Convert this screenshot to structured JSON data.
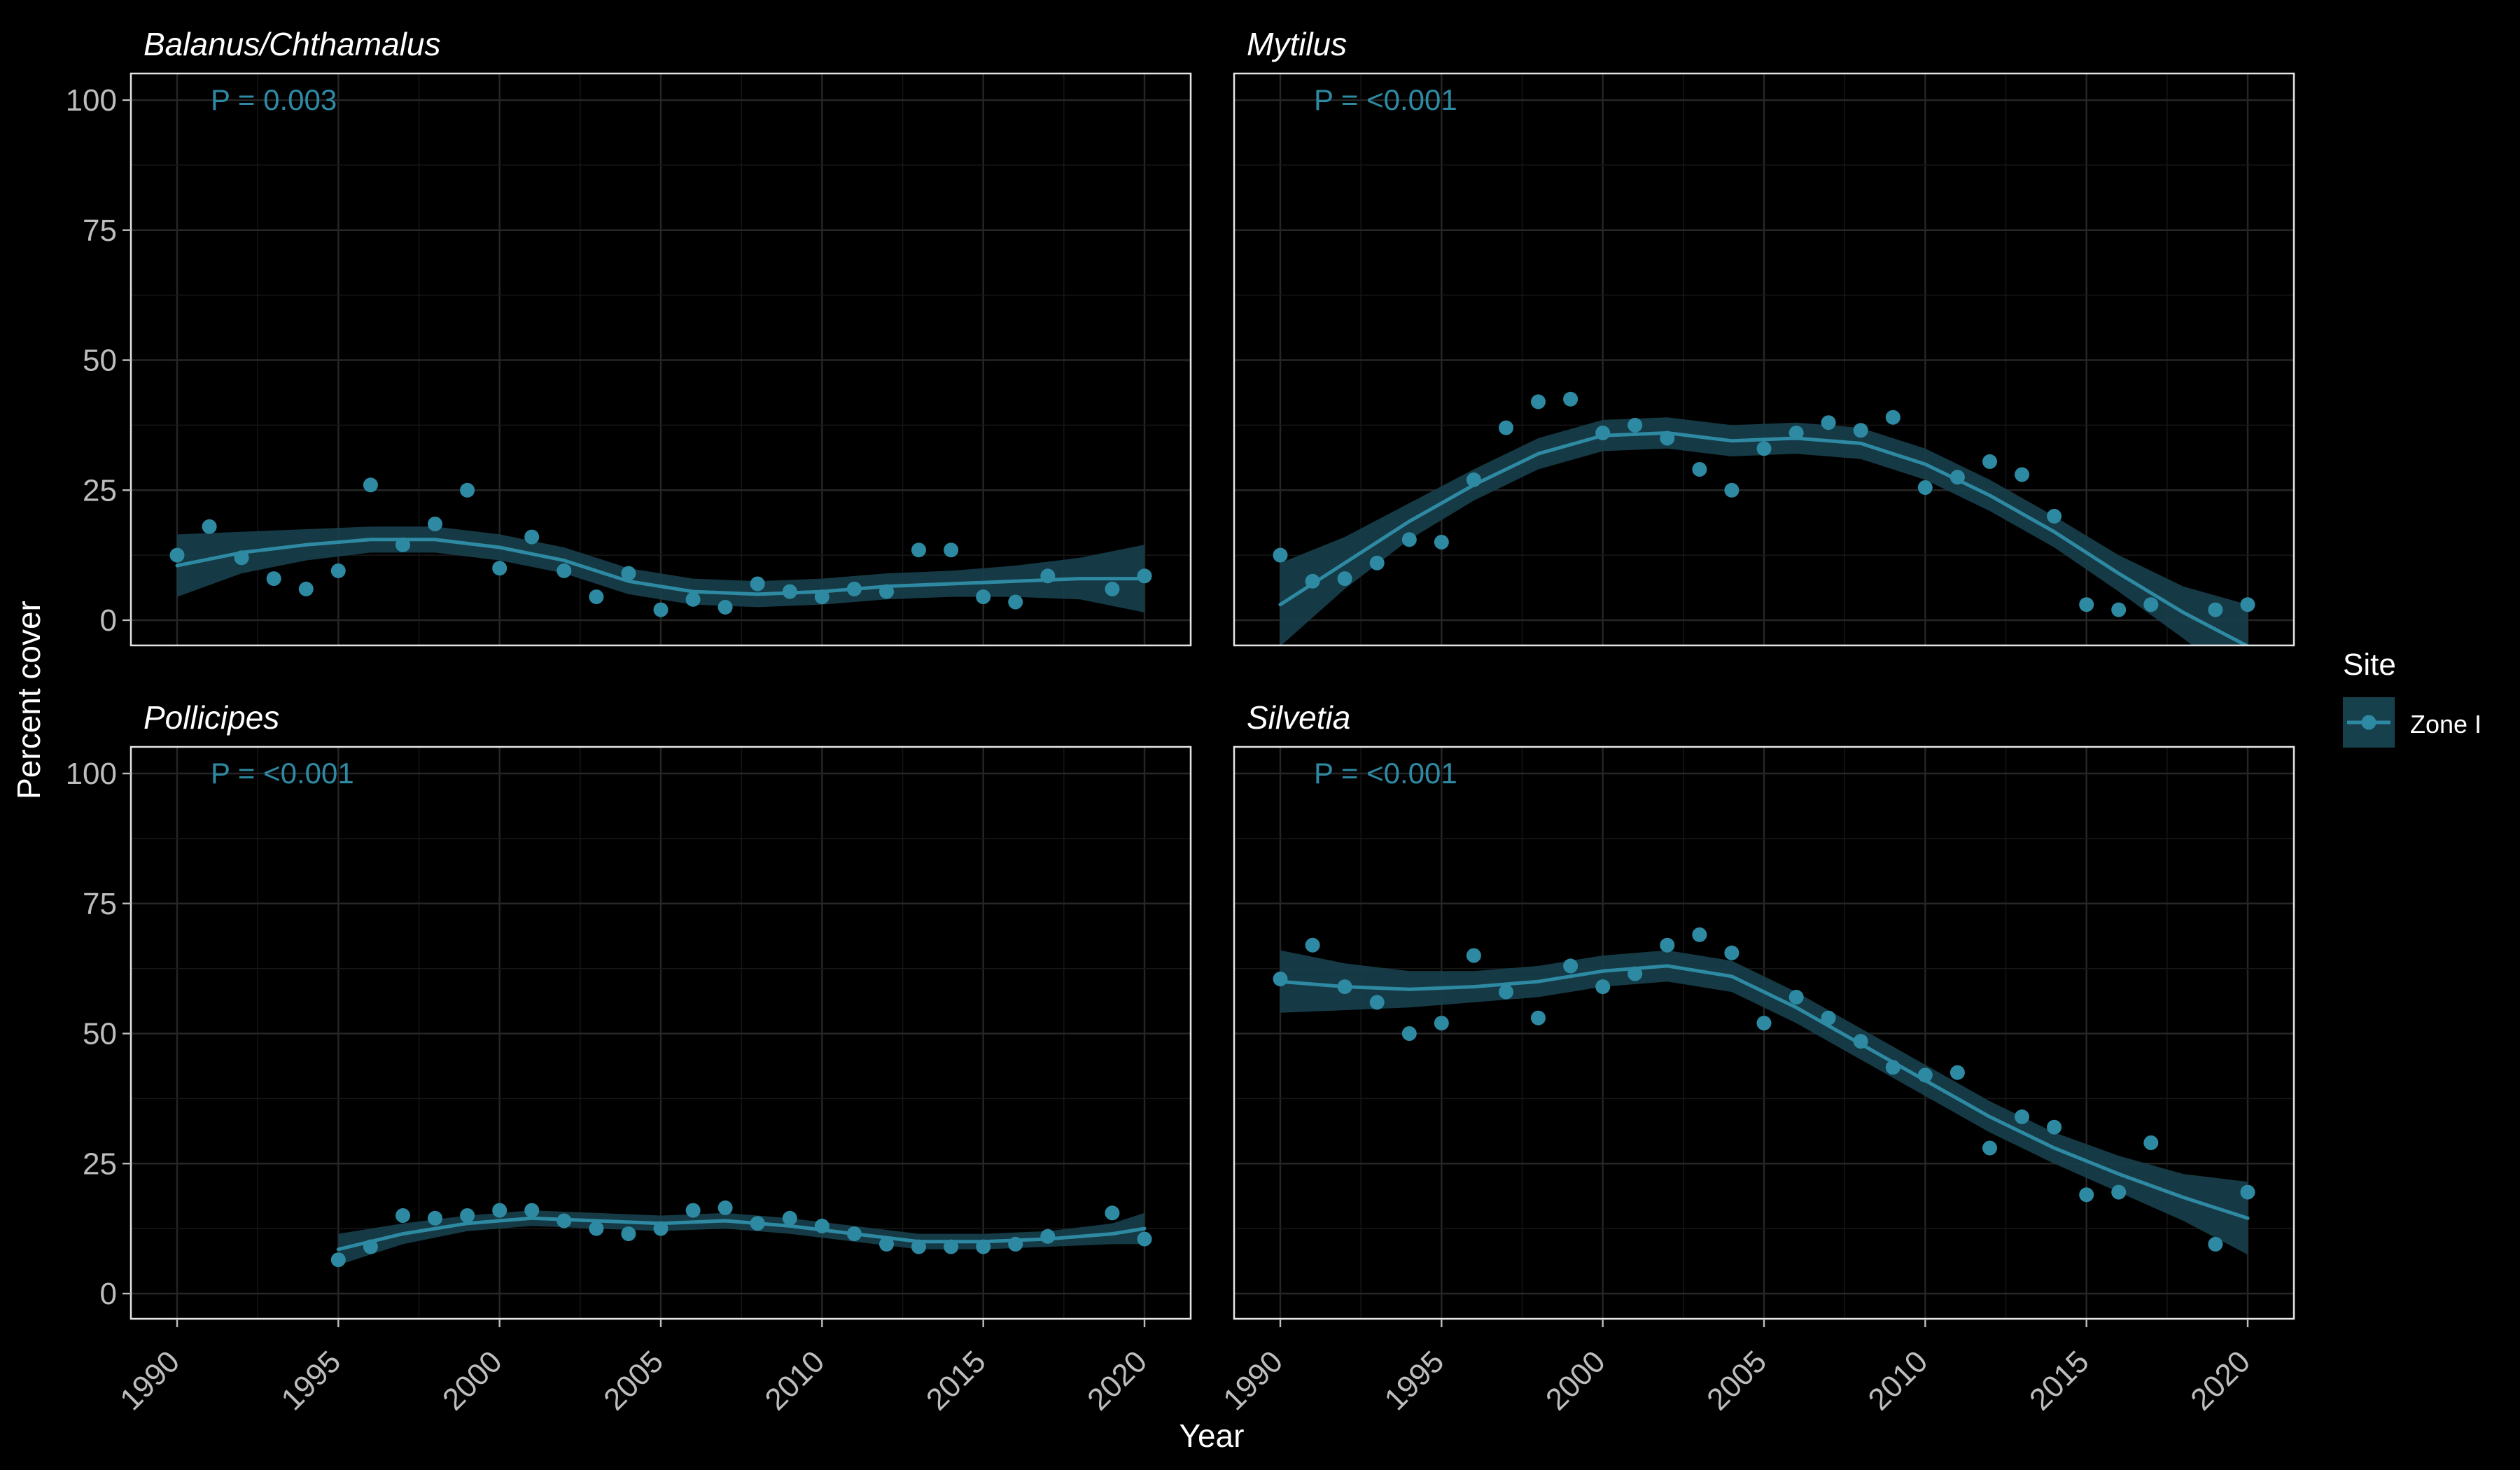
{
  "chart_data": {
    "type": "scatter",
    "xlabel": "Year",
    "ylabel": "Percent cover",
    "xlim": [
      1990,
      2020
    ],
    "ylim": [
      0,
      100
    ],
    "x_ticks": [
      1990,
      1995,
      2000,
      2005,
      2010,
      2015,
      2020
    ],
    "y_ticks": [
      0,
      25,
      50,
      75,
      100
    ],
    "grid": true,
    "legend": {
      "title": "Site",
      "position": "right",
      "entries": [
        "Zone I"
      ]
    },
    "colors": {
      "series": "#2e8aa3",
      "ribbon": "#17404d",
      "panel_border": "#e6e6e6",
      "background": "#000000"
    },
    "panels": [
      {
        "title": "Balanus/Chthamalus",
        "annotation": "P = 0.003",
        "points": [
          [
            1990,
            12.5
          ],
          [
            1991,
            18
          ],
          [
            1992,
            12
          ],
          [
            1993,
            8
          ],
          [
            1994,
            6
          ],
          [
            1995,
            9.5
          ],
          [
            1996,
            26
          ],
          [
            1997,
            14.5
          ],
          [
            1998,
            18.5
          ],
          [
            1999,
            25
          ],
          [
            2000,
            10
          ],
          [
            2001,
            16
          ],
          [
            2002,
            9.5
          ],
          [
            2003,
            4.5
          ],
          [
            2004,
            9
          ],
          [
            2005,
            2
          ],
          [
            2006,
            4
          ],
          [
            2007,
            2.5
          ],
          [
            2008,
            7
          ],
          [
            2009,
            5.5
          ],
          [
            2010,
            4.5
          ],
          [
            2011,
            6
          ],
          [
            2012,
            5.5
          ],
          [
            2013,
            13.5
          ],
          [
            2014,
            13.5
          ],
          [
            2015,
            4.5
          ],
          [
            2016,
            3.5
          ],
          [
            2017,
            8.5
          ],
          [
            2019,
            6
          ],
          [
            2020,
            8.5
          ]
        ],
        "smooth": [
          [
            1990,
            10.5
          ],
          [
            1992,
            13
          ],
          [
            1994,
            14.5
          ],
          [
            1996,
            15.5
          ],
          [
            1998,
            15.5
          ],
          [
            2000,
            14
          ],
          [
            2002,
            11.5
          ],
          [
            2004,
            7.5
          ],
          [
            2006,
            5.5
          ],
          [
            2008,
            5
          ],
          [
            2010,
            5.5
          ],
          [
            2012,
            6.5
          ],
          [
            2014,
            7
          ],
          [
            2016,
            7.5
          ],
          [
            2018,
            8
          ],
          [
            2020,
            8
          ]
        ],
        "ribbon_halfwidth": [
          6,
          4,
          3,
          2.5,
          2.5,
          2.5,
          2.5,
          2.5,
          2.5,
          2.5,
          2.5,
          2.5,
          2.5,
          3,
          4,
          6.5
        ]
      },
      {
        "title": "Mytilus",
        "annotation": "P = <0.001",
        "points": [
          [
            1990,
            12.5
          ],
          [
            1991,
            7.5
          ],
          [
            1992,
            8
          ],
          [
            1993,
            11
          ],
          [
            1994,
            15.5
          ],
          [
            1995,
            15
          ],
          [
            1996,
            27
          ],
          [
            1997,
            37
          ],
          [
            1998,
            42
          ],
          [
            1999,
            42.5
          ],
          [
            2000,
            36
          ],
          [
            2001,
            37.5
          ],
          [
            2002,
            35
          ],
          [
            2003,
            29
          ],
          [
            2004,
            25
          ],
          [
            2005,
            33
          ],
          [
            2006,
            36
          ],
          [
            2007,
            38
          ],
          [
            2008,
            36.5
          ],
          [
            2009,
            39
          ],
          [
            2010,
            25.5
          ],
          [
            2011,
            27.5
          ],
          [
            2012,
            30.5
          ],
          [
            2013,
            28
          ],
          [
            2014,
            20
          ],
          [
            2015,
            3
          ],
          [
            2016,
            2
          ],
          [
            2017,
            3
          ],
          [
            2019,
            2
          ],
          [
            2020,
            3
          ]
        ],
        "smooth": [
          [
            1990,
            3
          ],
          [
            1992,
            11
          ],
          [
            1994,
            19
          ],
          [
            1996,
            26
          ],
          [
            1998,
            32
          ],
          [
            2000,
            35.5
          ],
          [
            2002,
            36
          ],
          [
            2004,
            34.5
          ],
          [
            2006,
            35
          ],
          [
            2008,
            34
          ],
          [
            2010,
            30
          ],
          [
            2012,
            24
          ],
          [
            2014,
            17
          ],
          [
            2016,
            9
          ],
          [
            2018,
            1.5
          ],
          [
            2020,
            -5
          ]
        ],
        "ribbon_halfwidth": [
          8,
          5,
          3.5,
          3,
          3,
          3,
          3,
          3,
          3,
          3,
          3,
          3,
          3,
          3.5,
          5,
          8
        ]
      },
      {
        "title": "Pollicipes",
        "annotation": "P = <0.001",
        "points": [
          [
            1995,
            6.5
          ],
          [
            1996,
            9
          ],
          [
            1997,
            15
          ],
          [
            1998,
            14.5
          ],
          [
            1999,
            15
          ],
          [
            2000,
            16
          ],
          [
            2001,
            16
          ],
          [
            2002,
            14
          ],
          [
            2003,
            12.5
          ],
          [
            2004,
            11.5
          ],
          [
            2005,
            12.5
          ],
          [
            2006,
            16
          ],
          [
            2007,
            16.5
          ],
          [
            2008,
            13.5
          ],
          [
            2009,
            14.5
          ],
          [
            2010,
            13
          ],
          [
            2011,
            11.5
          ],
          [
            2012,
            9.5
          ],
          [
            2013,
            9
          ],
          [
            2014,
            9
          ],
          [
            2015,
            9
          ],
          [
            2016,
            9.5
          ],
          [
            2017,
            11
          ],
          [
            2019,
            15.5
          ],
          [
            2020,
            10.5
          ]
        ],
        "smooth": [
          [
            1995,
            8.5
          ],
          [
            1997,
            11.5
          ],
          [
            1999,
            13.5
          ],
          [
            2001,
            14.5
          ],
          [
            2003,
            14
          ],
          [
            2005,
            13.5
          ],
          [
            2007,
            14
          ],
          [
            2009,
            13
          ],
          [
            2011,
            11.5
          ],
          [
            2013,
            10
          ],
          [
            2015,
            10
          ],
          [
            2017,
            10.5
          ],
          [
            2019,
            11.5
          ],
          [
            2020,
            12.5
          ]
        ],
        "ribbon_halfwidth": [
          3,
          2,
          1.5,
          1.5,
          1.5,
          1.5,
          1.5,
          1.5,
          1.5,
          1.5,
          1.5,
          1.5,
          2,
          3
        ]
      },
      {
        "title": "Silvetia",
        "annotation": "P = <0.001",
        "points": [
          [
            1990,
            60.5
          ],
          [
            1991,
            67
          ],
          [
            1992,
            59
          ],
          [
            1993,
            56
          ],
          [
            1994,
            50
          ],
          [
            1995,
            52
          ],
          [
            1996,
            65
          ],
          [
            1997,
            58
          ],
          [
            1998,
            53
          ],
          [
            1999,
            63
          ],
          [
            2000,
            59
          ],
          [
            2001,
            61.5
          ],
          [
            2002,
            67
          ],
          [
            2003,
            69
          ],
          [
            2004,
            65.5
          ],
          [
            2005,
            52
          ],
          [
            2006,
            57
          ],
          [
            2007,
            53
          ],
          [
            2008,
            48.5
          ],
          [
            2009,
            43.5
          ],
          [
            2010,
            42
          ],
          [
            2011,
            42.5
          ],
          [
            2012,
            28
          ],
          [
            2013,
            34
          ],
          [
            2014,
            32
          ],
          [
            2015,
            19
          ],
          [
            2016,
            19.5
          ],
          [
            2017,
            29
          ],
          [
            2019,
            9.5
          ],
          [
            2020,
            19.5
          ]
        ],
        "smooth": [
          [
            1990,
            60
          ],
          [
            1992,
            59
          ],
          [
            1994,
            58.5
          ],
          [
            1996,
            59
          ],
          [
            1998,
            60
          ],
          [
            2000,
            62
          ],
          [
            2002,
            63
          ],
          [
            2004,
            61
          ],
          [
            2006,
            55
          ],
          [
            2008,
            48
          ],
          [
            2010,
            41
          ],
          [
            2012,
            34
          ],
          [
            2014,
            28
          ],
          [
            2016,
            23
          ],
          [
            2018,
            18.5
          ],
          [
            2020,
            14.5
          ]
        ],
        "ribbon_halfwidth": [
          6,
          4.5,
          3.5,
          3,
          3,
          3,
          3,
          3,
          3,
          3,
          3,
          3,
          3,
          3.5,
          4.5,
          7
        ]
      }
    ]
  }
}
